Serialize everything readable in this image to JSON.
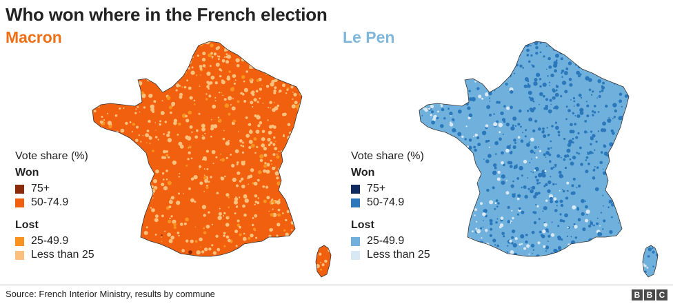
{
  "title": "Who won where in the French election",
  "maps": [
    {
      "candidate": "Macron",
      "name_color": "#ee6f16",
      "legend": {
        "heading": "Vote share (%)",
        "won_title": "Won",
        "won": [
          {
            "label": "75+",
            "color": "#8a2a0b"
          },
          {
            "label": "50-74.9",
            "color": "#f0600f"
          }
        ],
        "lost_title": "Lost",
        "lost": [
          {
            "label": "25-49.9",
            "color": "#f7931e"
          },
          {
            "label": "Less than 25",
            "color": "#fbc07c"
          }
        ]
      }
    },
    {
      "candidate": "Le Pen",
      "name_color": "#7fb6dc",
      "legend": {
        "heading": "Vote share (%)",
        "won_title": "Won",
        "won": [
          {
            "label": "75+",
            "color": "#0e2a5e"
          },
          {
            "label": "50-74.9",
            "color": "#2a78bb"
          }
        ],
        "lost_title": "Lost",
        "lost": [
          {
            "label": "25-49.9",
            "color": "#6fb0dc"
          },
          {
            "label": "Less than 25",
            "color": "#d8e8f4"
          }
        ]
      }
    }
  ],
  "footer": {
    "source": "Source: French Interior Ministry, results by commune",
    "logo": [
      "B",
      "B",
      "C"
    ]
  }
}
